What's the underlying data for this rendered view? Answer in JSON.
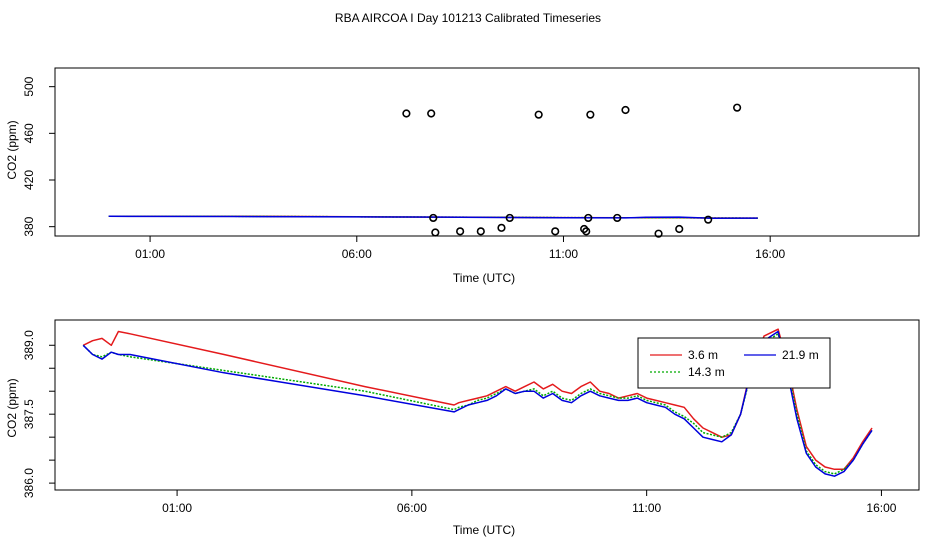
{
  "title": "RBA AIRCOA I  Day 101213  Calibrated Timeseries",
  "colors": {
    "red": "#e41a1c",
    "green": "#00aa00",
    "blue": "#0000dd",
    "points": "#000000",
    "frame": "#000000"
  },
  "chart_data": [
    {
      "type": "scatter",
      "title": "",
      "xlabel": "Time (UTC)",
      "ylabel": "CO2 (ppm)",
      "xlim": [
        -1.3,
        19.6
      ],
      "ylim": [
        372,
        516
      ],
      "xticks": [
        1,
        6,
        11,
        16
      ],
      "xtick_labels": [
        "01:00",
        "06:00",
        "11:00",
        "16:00"
      ],
      "yticks": [
        380,
        420,
        460,
        500
      ],
      "ytick_labels": [
        "380",
        "420",
        "460",
        "500"
      ],
      "x_major": [
        1,
        6,
        11,
        16
      ],
      "series": [
        {
          "name": "3.6 m",
          "color": "red",
          "style": "solid",
          "x": [
            0,
            3.0,
            6.0,
            7.2,
            8.0,
            9.5,
            11.0,
            12.5,
            13.8,
            14.6,
            15.7
          ],
          "y": [
            389,
            389,
            388.5,
            388.3,
            388.2,
            388.0,
            387.8,
            387.6,
            387.7,
            387.4,
            387.3
          ]
        },
        {
          "name": "14.3 m",
          "color": "green",
          "style": "dotted",
          "x": [
            0,
            3.0,
            6.0,
            7.2,
            8.0,
            9.5,
            11.0,
            12.5,
            13.8,
            14.6,
            15.7
          ],
          "y": [
            388.9,
            388.9,
            388.5,
            388.3,
            388.2,
            388.0,
            387.8,
            387.6,
            387.7,
            387.4,
            387.3
          ]
        },
        {
          "name": "21.9 m",
          "color": "blue",
          "style": "solid",
          "x": [
            0,
            3.0,
            6.0,
            7.2,
            8.0,
            9.5,
            11.0,
            12.5,
            13.0,
            13.8,
            14.6,
            15.7
          ],
          "y": [
            388.9,
            388.7,
            388.4,
            388.3,
            388.2,
            387.9,
            387.6,
            387.5,
            388.0,
            388.2,
            387.2,
            387.3
          ]
        },
        {
          "name": "points",
          "color": "points",
          "style": "circle",
          "x": [
            7.2,
            7.8,
            7.85,
            7.9,
            8.5,
            9.0,
            9.5,
            9.7,
            10.4,
            10.8,
            11.5,
            11.55,
            11.6,
            11.65,
            12.3,
            12.5,
            13.3,
            13.8,
            14.5,
            15.2
          ],
          "y": [
            477,
            477,
            387.5,
            375,
            376,
            376,
            379,
            387.5,
            476,
            376,
            378,
            376,
            387.5,
            476,
            387.5,
            480,
            374,
            378,
            386,
            482
          ]
        }
      ]
    },
    {
      "type": "line",
      "title": "",
      "xlabel": "Time (UTC)",
      "ylabel": "CO2 (ppm)",
      "xlim": [
        -1.6,
        16.8
      ],
      "ylim": [
        385.85,
        389.55
      ],
      "xticks": [
        1,
        6,
        11,
        16
      ],
      "xtick_labels": [
        "01:00",
        "06:00",
        "11:00",
        "16:00"
      ],
      "yticks": [
        386.0,
        386.5,
        387.0,
        387.5,
        388.0,
        388.5,
        389.0
      ],
      "ytick_labels": [
        "386.0",
        "",
        "",
        "387.5",
        "",
        "",
        "389.0"
      ],
      "legend": {
        "position": "top-right",
        "entries": [
          "3.6 m",
          "14.3 m",
          "21.9 m"
        ]
      },
      "series": [
        {
          "name": "3.6 m",
          "color": "red",
          "style": "solid",
          "x": [
            -1.0,
            -0.8,
            -0.6,
            -0.4,
            -0.25,
            0.0,
            2.0,
            5.0,
            6.9,
            7.0,
            7.2,
            7.4,
            7.6,
            7.8,
            8.0,
            8.2,
            8.4,
            8.6,
            8.8,
            9.0,
            9.2,
            9.4,
            9.6,
            9.8,
            10.0,
            10.2,
            10.4,
            10.6,
            10.8,
            11.0,
            11.2,
            11.4,
            11.6,
            11.8,
            12.0,
            12.2,
            12.4,
            12.6,
            12.8,
            13.0,
            13.2,
            13.5,
            13.8,
            14.0,
            14.2,
            14.4,
            14.6,
            14.8,
            15.0,
            15.2,
            15.4,
            15.6,
            15.8
          ],
          "y": [
            389.0,
            389.1,
            389.15,
            389.0,
            389.3,
            389.25,
            388.8,
            388.1,
            387.7,
            387.75,
            387.8,
            387.85,
            387.9,
            388.0,
            388.1,
            388.0,
            388.1,
            388.2,
            388.05,
            388.15,
            388.0,
            387.95,
            388.1,
            388.2,
            388.0,
            387.95,
            387.85,
            387.9,
            387.95,
            387.85,
            387.8,
            387.75,
            387.7,
            387.65,
            387.4,
            387.2,
            387.1,
            387.0,
            387.05,
            387.5,
            388.4,
            389.2,
            389.35,
            388.6,
            387.6,
            386.8,
            386.5,
            386.35,
            386.3,
            386.3,
            386.55,
            386.9,
            387.2
          ]
        },
        {
          "name": "14.3 m",
          "color": "green",
          "style": "dotted",
          "x": [
            -1.0,
            -0.8,
            -0.6,
            -0.4,
            -0.25,
            0.0,
            2.0,
            5.0,
            6.9,
            7.0,
            7.2,
            7.4,
            7.6,
            7.8,
            8.0,
            8.2,
            8.4,
            8.6,
            8.8,
            9.0,
            9.2,
            9.4,
            9.6,
            9.8,
            10.0,
            10.2,
            10.4,
            10.6,
            10.8,
            11.0,
            11.2,
            11.4,
            11.6,
            11.8,
            12.0,
            12.2,
            12.4,
            12.6,
            12.8,
            13.0,
            13.2,
            13.5,
            13.8,
            14.0,
            14.2,
            14.4,
            14.6,
            14.8,
            15.0,
            15.2,
            15.4,
            15.6,
            15.8
          ],
          "y": [
            389.0,
            388.8,
            388.75,
            388.85,
            388.8,
            388.75,
            388.45,
            388.0,
            387.6,
            387.65,
            387.7,
            387.8,
            387.85,
            387.95,
            388.05,
            387.95,
            388.0,
            388.05,
            387.9,
            388.0,
            387.85,
            387.8,
            387.95,
            388.05,
            387.95,
            387.9,
            387.85,
            387.85,
            387.9,
            387.8,
            387.75,
            387.7,
            387.55,
            387.45,
            387.3,
            387.1,
            387.05,
            387.0,
            387.1,
            387.5,
            388.3,
            389.05,
            389.25,
            388.5,
            387.5,
            386.7,
            386.4,
            386.25,
            386.2,
            386.3,
            386.5,
            386.85,
            387.15
          ]
        },
        {
          "name": "21.9 m",
          "color": "blue",
          "style": "solid",
          "x": [
            -1.0,
            -0.8,
            -0.6,
            -0.4,
            -0.25,
            0.0,
            2.0,
            5.0,
            6.9,
            7.0,
            7.2,
            7.4,
            7.6,
            7.8,
            8.0,
            8.2,
            8.4,
            8.6,
            8.8,
            9.0,
            9.2,
            9.4,
            9.6,
            9.8,
            10.0,
            10.2,
            10.4,
            10.6,
            10.8,
            11.0,
            11.2,
            11.4,
            11.6,
            11.8,
            12.0,
            12.2,
            12.4,
            12.6,
            12.8,
            13.0,
            13.2,
            13.5,
            13.8,
            14.0,
            14.2,
            14.4,
            14.6,
            14.8,
            15.0,
            15.2,
            15.4,
            15.6,
            15.8
          ],
          "y": [
            389.0,
            388.8,
            388.7,
            388.85,
            388.8,
            388.8,
            388.4,
            387.9,
            387.55,
            387.6,
            387.7,
            387.75,
            387.8,
            387.9,
            388.05,
            387.95,
            388.0,
            388.0,
            387.85,
            387.95,
            387.8,
            387.75,
            387.9,
            388.0,
            387.9,
            387.85,
            387.8,
            387.8,
            387.85,
            387.75,
            387.7,
            387.65,
            387.5,
            387.4,
            387.2,
            387.0,
            386.95,
            386.9,
            387.05,
            387.5,
            388.35,
            389.1,
            389.3,
            388.4,
            387.4,
            386.65,
            386.35,
            386.2,
            386.15,
            386.25,
            386.5,
            386.85,
            387.15
          ]
        }
      ]
    }
  ]
}
